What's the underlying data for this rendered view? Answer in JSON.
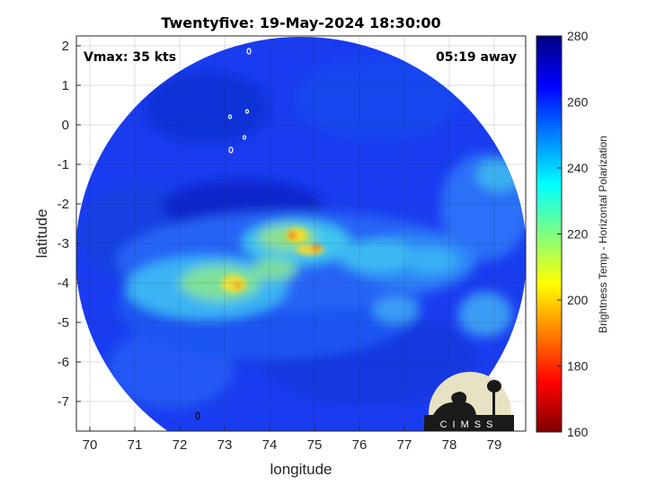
{
  "chart_data": {
    "type": "heatmap",
    "title": "Twentyfive: 19-May-2024 18:30:00",
    "xlabel": "longitude",
    "ylabel": "latitude",
    "xlim": [
      69.7,
      79.7
    ],
    "ylim": [
      -7.75,
      2.25
    ],
    "x_ticks": [
      "70",
      "71",
      "72",
      "73",
      "74",
      "75",
      "76",
      "77",
      "78",
      "79"
    ],
    "y_ticks": [
      "2",
      "1",
      "0",
      "-1",
      "-2",
      "-3",
      "-4",
      "-5",
      "-6",
      "-7"
    ],
    "grid": true,
    "annotations": {
      "vmax": "Vmax: 35 kts",
      "away": "05:19 away"
    },
    "colorbar": {
      "label": "Brightness Temp - Horizontal Polarization",
      "range": [
        160,
        280
      ],
      "ticks": [
        "280",
        "260",
        "240",
        "220",
        "200",
        "180",
        "160"
      ],
      "colormap": "jet"
    },
    "logo": "CIMSS"
  }
}
